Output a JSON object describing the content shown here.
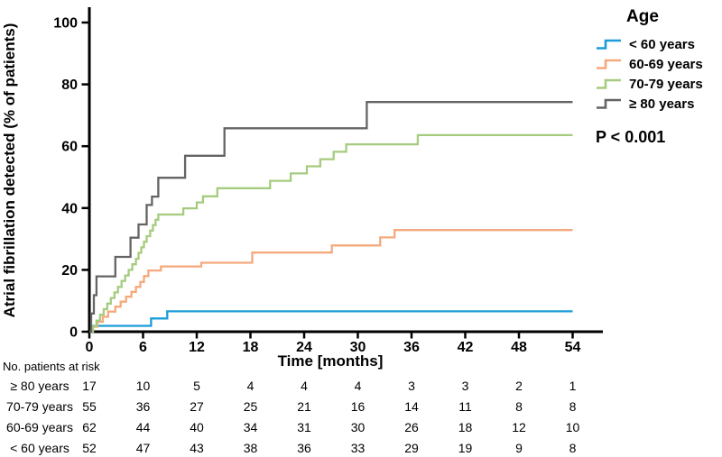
{
  "chart_data": {
    "type": "line",
    "subtype": "step-km",
    "ylabel": "Atrial fibrillation detected (% of patients)",
    "xlabel": "Time [months]",
    "xticks": [
      0,
      6,
      12,
      18,
      24,
      30,
      36,
      42,
      48,
      54
    ],
    "yticks": [
      0,
      20,
      40,
      60,
      80,
      100
    ],
    "xlim": [
      0,
      57.5
    ],
    "ylim": [
      0,
      105
    ],
    "grid": false,
    "legend_position": "top-right",
    "legend_title": "Age",
    "annotation": "P < 0.001",
    "axis_color": "#000000",
    "series": [
      {
        "name": "< 60 years",
        "color": "#1b9cd8",
        "points": [
          [
            0,
            0
          ],
          [
            0.3,
            1.9
          ],
          [
            6.9,
            4.3
          ],
          [
            8.7,
            6.6
          ],
          [
            54,
            6.6
          ]
        ]
      },
      {
        "name": "60-69 years",
        "color": "#f5a97c",
        "points": [
          [
            0,
            0
          ],
          [
            0.4,
            1.6
          ],
          [
            0.9,
            3.2
          ],
          [
            1.5,
            4.8
          ],
          [
            2.1,
            6.5
          ],
          [
            2.9,
            8.1
          ],
          [
            3.5,
            9.7
          ],
          [
            4.1,
            11.3
          ],
          [
            4.7,
            12.9
          ],
          [
            5.2,
            14.5
          ],
          [
            5.7,
            16.1
          ],
          [
            6.1,
            18.0
          ],
          [
            6.6,
            19.8
          ],
          [
            8.0,
            21.1
          ],
          [
            12.5,
            22.3
          ],
          [
            18.2,
            25.6
          ],
          [
            27.1,
            27.9
          ],
          [
            32.5,
            30.5
          ],
          [
            34.1,
            32.9
          ],
          [
            54,
            32.9
          ]
        ]
      },
      {
        "name": "70-79 years",
        "color": "#a5cc7e",
        "points": [
          [
            0,
            0
          ],
          [
            0.4,
            1.8
          ],
          [
            0.8,
            3.6
          ],
          [
            1.2,
            5.5
          ],
          [
            1.6,
            7.3
          ],
          [
            2.0,
            9.1
          ],
          [
            2.4,
            10.9
          ],
          [
            2.8,
            12.7
          ],
          [
            3.2,
            14.5
          ],
          [
            3.6,
            16.4
          ],
          [
            4.0,
            18.2
          ],
          [
            4.4,
            20.0
          ],
          [
            4.8,
            21.8
          ],
          [
            5.2,
            23.6
          ],
          [
            5.5,
            25.5
          ],
          [
            5.8,
            27.3
          ],
          [
            6.1,
            29.1
          ],
          [
            6.4,
            30.9
          ],
          [
            6.8,
            32.7
          ],
          [
            7.1,
            34.5
          ],
          [
            7.4,
            36.2
          ],
          [
            7.7,
            37.9
          ],
          [
            10.5,
            39.9
          ],
          [
            12.0,
            41.8
          ],
          [
            12.7,
            43.8
          ],
          [
            14.3,
            46.4
          ],
          [
            20.2,
            48.8
          ],
          [
            22.5,
            51.2
          ],
          [
            24.3,
            53.5
          ],
          [
            25.8,
            55.8
          ],
          [
            27.3,
            58.2
          ],
          [
            28.7,
            60.6
          ],
          [
            36.7,
            63.6
          ],
          [
            54,
            63.6
          ]
        ]
      },
      {
        "name": "≥ 80 years",
        "color": "#646464",
        "points": [
          [
            0,
            0
          ],
          [
            0.2,
            5.9
          ],
          [
            0.5,
            11.8
          ],
          [
            0.8,
            17.9
          ],
          [
            2.9,
            24.2
          ],
          [
            4.6,
            30.4
          ],
          [
            5.5,
            34.7
          ],
          [
            6.4,
            41.0
          ],
          [
            7.0,
            43.7
          ],
          [
            7.7,
            49.8
          ],
          [
            10.7,
            56.9
          ],
          [
            15.1,
            65.8
          ],
          [
            31.0,
            74.3
          ],
          [
            54,
            74.3
          ]
        ]
      }
    ],
    "risk_table": {
      "title": "No. patients at risk",
      "times": [
        0,
        6,
        12,
        18,
        24,
        30,
        36,
        42,
        48,
        54
      ],
      "rows": [
        {
          "label": "≥ 80 years",
          "values": [
            17,
            10,
            5,
            4,
            4,
            4,
            3,
            3,
            2,
            1
          ]
        },
        {
          "label": "70-79 years",
          "values": [
            55,
            36,
            27,
            25,
            21,
            16,
            14,
            11,
            8,
            8
          ]
        },
        {
          "label": "60-69 years",
          "values": [
            62,
            44,
            40,
            34,
            31,
            30,
            26,
            18,
            12,
            10
          ]
        },
        {
          "label": "< 60 years",
          "values": [
            52,
            47,
            43,
            38,
            36,
            33,
            29,
            19,
            9,
            8
          ]
        }
      ]
    }
  }
}
